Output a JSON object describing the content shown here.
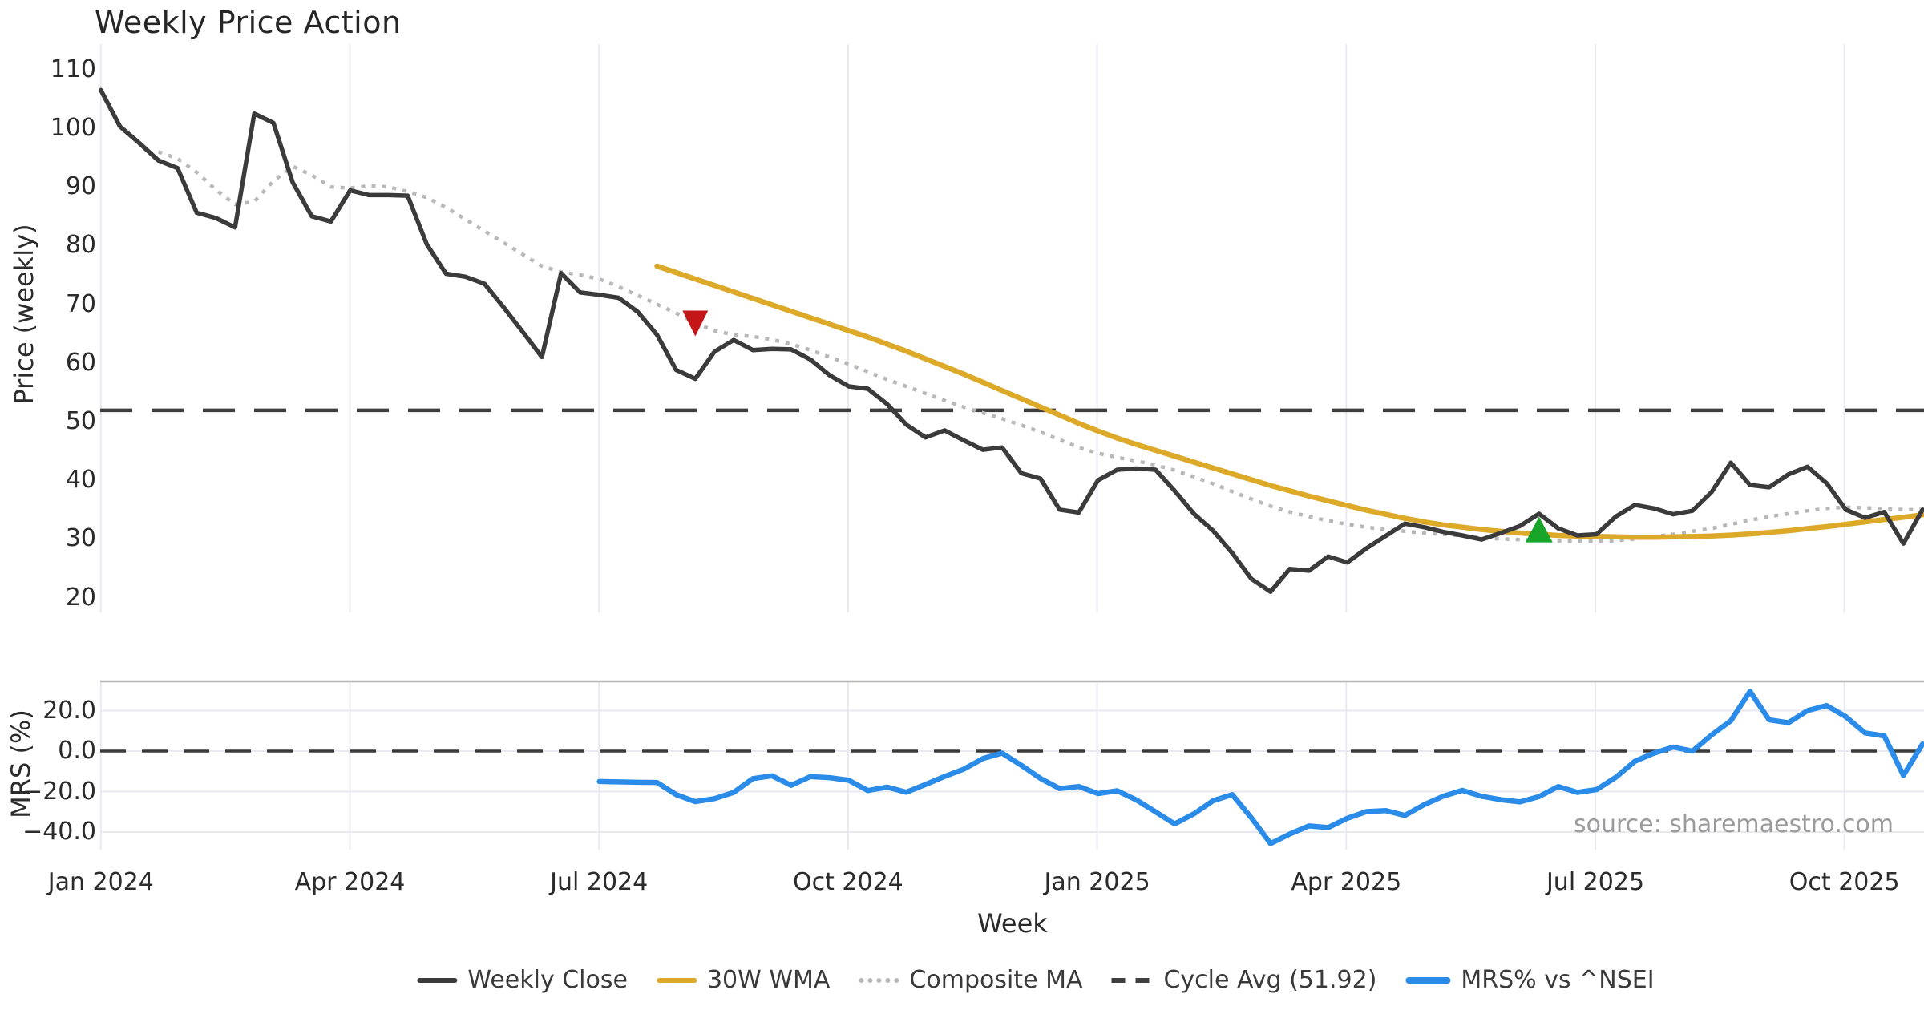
{
  "title": "Weekly Price Action",
  "source_note": "source: sharemaestro.com",
  "price_axis": {
    "label": "Price (weekly)",
    "ticks": [
      "110",
      "100",
      "90",
      "80",
      "70",
      "60",
      "50",
      "40",
      "30",
      "20"
    ],
    "tick_values": [
      110,
      100,
      90,
      80,
      70,
      60,
      50,
      40,
      30,
      20
    ]
  },
  "mrs_axis": {
    "label": "MRS (%)",
    "ticks": [
      "20.0",
      "0.0",
      "−20.0",
      "−40.0"
    ],
    "tick_values": [
      20,
      0,
      -20,
      -40
    ]
  },
  "x_axis": {
    "label": "Week",
    "ticks": [
      "Jan 2024",
      "Apr 2024",
      "Jul 2024",
      "Oct 2024",
      "Jan 2025",
      "Apr 2025",
      "Jul 2025",
      "Oct 2025"
    ]
  },
  "legend": [
    {
      "label": "Weekly Close",
      "style": "solid",
      "color": "#3b3b3b"
    },
    {
      "label": "30W WMA",
      "style": "solid",
      "color": "#dca928"
    },
    {
      "label": "Composite MA",
      "style": "dotted",
      "color": "#b8b8b8"
    },
    {
      "label": "Cycle Avg (51.92)",
      "style": "dashed",
      "color": "#3f3f3f"
    },
    {
      "label": "MRS% vs ^NSEI",
      "style": "thick",
      "color": "#2a8ce8"
    }
  ],
  "colors": {
    "close": "#3b3b3b",
    "wma": "#dca928",
    "composite": "#b8b8b8",
    "cycle_dash": "#3f3f3f",
    "mrs": "#2a8ce8",
    "sell_marker": "#c41616",
    "buy_marker": "#17a62a",
    "grid": "#e9eaf1",
    "panel_border": "#b6b6b6",
    "zero_dash": "#3a3a3a"
  },
  "chart_data": {
    "type": "line",
    "title": "Weekly Price Action",
    "xlabel": "Week",
    "x_unit": "weekly index from Jan 2024",
    "panels": [
      {
        "name": "price",
        "ylabel": "Price (weekly)",
        "ylim": [
          15,
          114
        ],
        "grid": "vertical"
      },
      {
        "name": "mrs",
        "ylabel": "MRS (%)",
        "ylim": [
          -49,
          34
        ],
        "grid": "both"
      }
    ],
    "cycle_avg": 51.92,
    "series": [
      {
        "name": "Weekly Close",
        "panel": "price",
        "style": "solid",
        "color": "#3b3b3b",
        "start_week": 0,
        "values": [
          106.5,
          100.3,
          97.5,
          94.5,
          93.2,
          85.6,
          84.7,
          83.1,
          102.5,
          100.9,
          90.8,
          85.0,
          84.1,
          89.4,
          88.6,
          88.6,
          88.5,
          80.2,
          75.2,
          74.7,
          73.5,
          69.5,
          65.3,
          61.0,
          75.3,
          72.0,
          71.6,
          71.1,
          68.7,
          64.8,
          58.8,
          57.3,
          61.9,
          63.9,
          62.2,
          62.4,
          62.3,
          60.6,
          57.9,
          56.0,
          55.6,
          53.0,
          49.5,
          47.3,
          48.5,
          46.8,
          45.2,
          45.6,
          41.2,
          40.3,
          35.0,
          34.5,
          40.0,
          41.8,
          42.0,
          41.8,
          38.2,
          34.3,
          31.4,
          27.6,
          23.2,
          21.0,
          24.9,
          24.6,
          27.0,
          26.0,
          28.4,
          30.5,
          32.6,
          32.0,
          31.2,
          30.6,
          29.9,
          31.0,
          32.2,
          34.3,
          31.8,
          30.6,
          30.8,
          33.8,
          35.8,
          35.2,
          34.2,
          34.8,
          38.0,
          43.0,
          39.2,
          38.8,
          41.0,
          42.3,
          39.5,
          35.0,
          33.6,
          34.6,
          29.2,
          35.0
        ]
      },
      {
        "name": "30W WMA",
        "panel": "price",
        "style": "solid",
        "color": "#dca928",
        "start_week": 29,
        "values": [
          76.5,
          75.4,
          74.3,
          73.2,
          72.1,
          71.0,
          69.9,
          68.8,
          67.7,
          66.6,
          65.5,
          64.4,
          63.2,
          62.0,
          60.7,
          59.4,
          58.1,
          56.7,
          55.3,
          53.9,
          52.5,
          51.1,
          49.7,
          48.4,
          47.2,
          46.1,
          45.1,
          44.1,
          43.1,
          42.1,
          41.1,
          40.1,
          39.1,
          38.2,
          37.3,
          36.5,
          35.7,
          34.9,
          34.2,
          33.5,
          32.9,
          32.4,
          32.0,
          31.6,
          31.3,
          31.0,
          30.8,
          30.6,
          30.5,
          30.4,
          30.35,
          30.3,
          30.3,
          30.35,
          30.4,
          30.5,
          30.65,
          30.85,
          31.1,
          31.4,
          31.75,
          32.1,
          32.5,
          32.9,
          33.3,
          33.7,
          34.1
        ]
      },
      {
        "name": "Composite MA",
        "panel": "price",
        "style": "dotted",
        "color": "#b8b8b8",
        "start_week": 3,
        "values": [
          96.0,
          94.8,
          92.5,
          89.5,
          87.0,
          87.5,
          91.0,
          93.5,
          92.0,
          90.0,
          89.8,
          90.2,
          90.0,
          89.2,
          88.2,
          86.5,
          84.5,
          82.5,
          80.5,
          78.5,
          76.5,
          75.5,
          75.0,
          74.3,
          73.0,
          71.5,
          70.0,
          68.5,
          66.8,
          65.5,
          64.8,
          64.5,
          64.0,
          63.2,
          62.2,
          61.0,
          59.8,
          58.5,
          57.2,
          56.0,
          54.8,
          53.6,
          52.5,
          51.5,
          50.5,
          49.4,
          48.2,
          46.9,
          45.6,
          44.6,
          43.9,
          43.3,
          42.6,
          41.7,
          40.6,
          39.4,
          38.1,
          36.8,
          35.6,
          34.6,
          33.8,
          33.1,
          32.5,
          32.0,
          31.6,
          31.3,
          31.0,
          30.8,
          30.5,
          30.2,
          30.0,
          29.9,
          29.8,
          29.7,
          29.6,
          29.6,
          29.7,
          30.0,
          30.4,
          30.8,
          31.3,
          31.8,
          32.5,
          33.2,
          33.8,
          34.3,
          34.8,
          35.2,
          35.4,
          35.3,
          35.2,
          35.0,
          35.0
        ]
      },
      {
        "name": "Cycle Avg (51.92)",
        "panel": "price",
        "style": "dashed",
        "color": "#3f3f3f",
        "constant": 51.92
      },
      {
        "name": "MRS% vs ^NSEI",
        "panel": "mrs",
        "style": "solid",
        "color": "#2a8ce8",
        "start_week": 26,
        "values": [
          -15.0,
          -15.2,
          -15.4,
          -15.5,
          -21.5,
          -25.0,
          -23.5,
          -20.4,
          -13.6,
          -12.2,
          -16.9,
          -12.6,
          -13.1,
          -14.4,
          -19.5,
          -17.8,
          -20.3,
          -16.5,
          -12.5,
          -8.9,
          -3.7,
          -1.0,
          -7.0,
          -13.5,
          -18.5,
          -17.5,
          -21.0,
          -19.6,
          -24.1,
          -30.0,
          -36.0,
          -31.0,
          -24.5,
          -21.5,
          -33.0,
          -45.7,
          -41.0,
          -37.0,
          -37.8,
          -33.2,
          -29.9,
          -29.4,
          -31.8,
          -26.5,
          -22.3,
          -19.4,
          -22.3,
          -24.0,
          -25.1,
          -22.5,
          -17.5,
          -20.4,
          -19.0,
          -13.0,
          -5.0,
          -1.0,
          2.0,
          0.0,
          8.0,
          15.0,
          29.5,
          15.5,
          14.0,
          20.0,
          22.5,
          17.0,
          9.0,
          7.5,
          -12.0,
          3.5
        ]
      }
    ],
    "markers": [
      {
        "name": "sell-signal",
        "shape": "triangle-down",
        "color": "#c41616",
        "week": 31,
        "value": 67.0
      },
      {
        "name": "buy-signal",
        "shape": "triangle-up",
        "color": "#17a62a",
        "week": 75,
        "value": 31.6
      }
    ],
    "zero_line_panel_mrs": 0.0,
    "legend_position": "bottom-center"
  }
}
